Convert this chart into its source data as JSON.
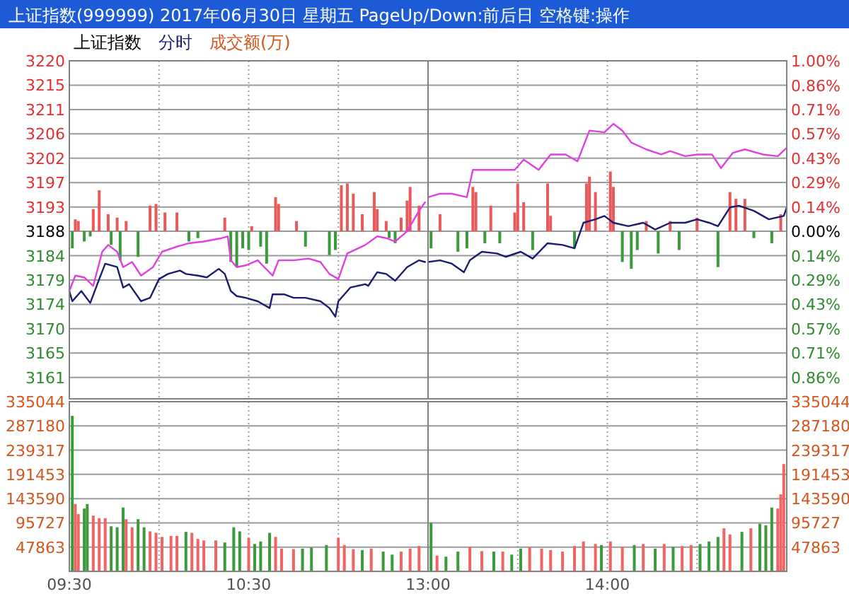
{
  "chart_data": [
    {
      "type": "line",
      "title": "上证指数(999999) 2017年06月30日 星期五 PageUp/Down:前后日 空格键:操作",
      "subtitle": "上证指数",
      "annotations": [
        "成交额(万)"
      ],
      "legend": "top left",
      "grid": true,
      "tick_labels": "y",
      "xlim": [
        "2017-06-30T09:30",
        "2017-06-30T11:30"
      ],
      "xticks": [
        {
          "value": "2017-06-30T09:30",
          "label": null
        },
        {
          "value": "2017-06-30T10:00",
          "label": null
        },
        {
          "value": "2017-06-30T10:30",
          "label": null
        },
        {
          "value": "2017-06-30T11:00",
          "label": null
        }
      ],
      "ylim": [
        3156.8,
        3219.95
      ],
      "yticks": [
        {
          "value": 3219.95,
          "label": "3220"
        },
        {
          "value": 3215.4,
          "label": "3215"
        },
        {
          "value": 3210.85,
          "label": "3211"
        },
        {
          "value": 3206.3,
          "label": "3206"
        },
        {
          "value": 3201.75,
          "label": "3202"
        },
        {
          "value": 3197.2,
          "label": "3197"
        },
        {
          "value": 3192.65,
          "label": "3193"
        },
        {
          "value": 3188.1,
          "label": "3188"
        },
        {
          "value": 3183.55,
          "label": "3184"
        },
        {
          "value": 3179.0,
          "label": "3179"
        },
        {
          "value": 3174.45,
          "label": "3174"
        },
        {
          "value": 3169.9,
          "label": "3170"
        },
        {
          "value": 3165.35,
          "label": "3165"
        },
        {
          "value": 3160.8,
          "label": "3161"
        }
      ],
      "y2lim": [
        -0.982,
        0.999
      ],
      "series": [
        {
          "type": "bar",
          "axis": "y2",
          "color": "#e85a5a",
          "x": [
            "2017-06-30T09:32",
            "2017-06-30T09:33",
            "2017-06-30T09:38",
            "2017-06-30T09:40",
            "2017-06-30T09:43",
            "2017-06-30T09:46",
            "2017-06-30T09:49",
            "2017-06-30T09:57",
            "2017-06-30T09:59",
            "2017-06-30T10:02",
            "2017-06-30T10:06",
            "2017-06-30T10:22",
            "2017-06-30T10:31",
            "2017-06-30T10:39",
            "2017-06-30T10:40",
            "2017-06-30T10:46",
            "2017-06-30T11:01",
            "2017-06-30T11:03",
            "2017-06-30T11:05",
            "2017-06-30T11:08",
            "2017-06-30T11:12",
            "2017-06-30T11:13",
            "2017-06-30T11:16",
            "2017-06-30T11:21",
            "2017-06-30T11:23",
            "2017-06-30T11:24",
            "2017-06-30T11:27"
          ],
          "values": [
            0.07,
            0.06,
            0.13,
            0.24,
            0.1,
            0.08,
            0.06,
            0.15,
            0.16,
            0.11,
            0.11,
            0.08,
            0.03,
            0.2,
            0.16,
            0.06,
            0.27,
            0.28,
            0.22,
            0.1,
            0.23,
            0.13,
            0.06,
            0.08,
            0.18,
            0.26,
            0.15
          ]
        },
        {
          "type": "bar",
          "axis": "y2",
          "color": "#3c9a3c",
          "x": [
            "2017-06-30T09:31",
            "2017-06-30T09:35",
            "2017-06-30T09:37",
            "2017-06-30T09:44",
            "2017-06-30T09:47",
            "2017-06-30T09:53",
            "2017-06-30T10:10",
            "2017-06-30T10:13",
            "2017-06-30T10:24",
            "2017-06-30T10:26",
            "2017-06-30T10:28",
            "2017-06-30T10:30",
            "2017-06-30T10:34",
            "2017-06-30T10:36",
            "2017-06-30T10:49",
            "2017-06-30T10:57",
            "2017-06-30T10:59",
            "2017-06-30T11:17",
            "2017-06-30T11:19"
          ],
          "values": [
            -0.1,
            -0.06,
            -0.03,
            -0.08,
            -0.17,
            -0.15,
            -0.06,
            -0.04,
            -0.18,
            -0.21,
            -0.1,
            -0.11,
            -0.09,
            -0.19,
            -0.09,
            -0.14,
            -0.11,
            -0.04,
            -0.07
          ]
        },
        {
          "axis": "y2",
          "color": "#e040e0",
          "x": [
            "2017-06-30T09:30",
            "2017-06-30T09:32",
            "2017-06-30T09:35",
            "2017-06-30T09:38",
            "2017-06-30T09:41",
            "2017-06-30T09:43",
            "2017-06-30T09:46",
            "2017-06-30T09:48",
            "2017-06-30T09:51",
            "2017-06-30T09:54",
            "2017-06-30T09:58",
            "2017-06-30T10:01",
            "2017-06-30T10:06",
            "2017-06-30T10:10",
            "2017-06-30T10:15",
            "2017-06-30T10:21",
            "2017-06-30T10:23",
            "2017-06-30T10:24",
            "2017-06-30T10:26",
            "2017-06-30T10:29",
            "2017-06-30T10:33",
            "2017-06-30T10:38",
            "2017-06-30T10:40",
            "2017-06-30T10:45",
            "2017-06-30T10:50",
            "2017-06-30T10:54",
            "2017-06-30T10:57",
            "2017-06-30T11:00",
            "2017-06-30T11:03",
            "2017-06-30T11:09",
            "2017-06-30T11:13",
            "2017-06-30T11:16",
            "2017-06-30T11:19",
            "2017-06-30T11:23",
            "2017-06-30T11:27",
            "2017-06-30T11:29"
          ],
          "values": [
            -0.35,
            -0.26,
            -0.27,
            -0.32,
            -0.12,
            -0.08,
            -0.12,
            -0.21,
            -0.18,
            -0.26,
            -0.21,
            -0.12,
            -0.09,
            -0.07,
            -0.06,
            -0.04,
            -0.03,
            -0.17,
            -0.21,
            -0.2,
            -0.17,
            -0.26,
            -0.17,
            -0.17,
            -0.16,
            -0.18,
            -0.25,
            -0.28,
            -0.13,
            -0.08,
            -0.03,
            -0.04,
            -0.06,
            0.0,
            0.12,
            0.17
          ]
        },
        {
          "axis": "y2",
          "name": "分时",
          "color": "#1c1c70",
          "x": [
            "2017-06-30T09:30",
            "2017-06-30T09:31",
            "2017-06-30T09:34",
            "2017-06-30T09:37",
            "2017-06-30T09:40",
            "2017-06-30T09:42",
            "2017-06-30T09:46",
            "2017-06-30T09:48",
            "2017-06-30T09:50",
            "2017-06-30T09:54",
            "2017-06-30T09:57",
            "2017-06-30T10:00",
            "2017-06-30T10:03",
            "2017-06-30T10:07",
            "2017-06-30T10:09",
            "2017-06-30T10:13",
            "2017-06-30T10:16",
            "2017-06-30T10:20",
            "2017-06-30T10:22",
            "2017-06-30T10:24",
            "2017-06-30T10:26",
            "2017-06-30T10:29",
            "2017-06-30T10:33",
            "2017-06-30T10:37",
            "2017-06-30T10:38",
            "2017-06-30T10:42",
            "2017-06-30T10:45",
            "2017-06-30T10:49",
            "2017-06-30T10:54",
            "2017-06-30T10:57",
            "2017-06-30T10:59",
            "2017-06-30T11:00",
            "2017-06-30T11:04",
            "2017-06-30T11:09",
            "2017-06-30T11:10",
            "2017-06-30T11:13",
            "2017-06-30T11:16",
            "2017-06-30T11:19",
            "2017-06-30T11:23",
            "2017-06-30T11:27",
            "2017-06-30T11:29"
          ],
          "values": [
            -0.35,
            -0.41,
            -0.35,
            -0.42,
            -0.28,
            -0.19,
            -0.21,
            -0.33,
            -0.31,
            -0.41,
            -0.39,
            -0.28,
            -0.25,
            -0.23,
            -0.25,
            -0.26,
            -0.27,
            -0.22,
            -0.25,
            -0.35,
            -0.38,
            -0.39,
            -0.41,
            -0.45,
            -0.37,
            -0.37,
            -0.39,
            -0.39,
            -0.41,
            -0.45,
            -0.5,
            -0.41,
            -0.33,
            -0.31,
            -0.32,
            -0.24,
            -0.25,
            -0.29,
            -0.21,
            -0.17,
            -0.18
          ]
        }
      ]
    },
    {
      "type": "line",
      "grid": true,
      "tick_labels": "y",
      "xlim": [
        "2017-06-30T13:00",
        "2017-06-30T15:00"
      ],
      "xticks": [
        {
          "value": "2017-06-30T13:00",
          "label": null
        },
        {
          "value": "2017-06-30T13:30",
          "label": null
        },
        {
          "value": "2017-06-30T14:00",
          "label": null
        },
        {
          "value": "2017-06-30T14:30",
          "label": null
        }
      ],
      "y2lim": [
        -0.982,
        0.999
      ],
      "y2ticks": [
        {
          "value": 0.999,
          "label": "1.00%"
        },
        {
          "value": 0.856,
          "label": "0.86%"
        },
        {
          "value": 0.714,
          "label": "0.71%"
        },
        {
          "value": 0.571,
          "label": "0.57%"
        },
        {
          "value": 0.428,
          "label": "0.43%"
        },
        {
          "value": 0.286,
          "label": "0.29%"
        },
        {
          "value": 0.143,
          "label": "0.14%"
        },
        {
          "value": 0,
          "label": "0.00%"
        },
        {
          "value": -0.143,
          "label": "0.14%"
        },
        {
          "value": -0.286,
          "label": "0.29%"
        },
        {
          "value": -0.428,
          "label": "0.43%"
        },
        {
          "value": -0.571,
          "label": "0.57%"
        },
        {
          "value": -0.714,
          "label": "0.71%"
        },
        {
          "value": -0.856,
          "label": "0.86%"
        }
      ],
      "series": [
        {
          "type": "bar",
          "axis": "y2",
          "color": "#e85a5a",
          "x": [
            "2017-06-30T13:04",
            "2017-06-30T13:15",
            "2017-06-30T13:16",
            "2017-06-30T13:21",
            "2017-06-30T13:29",
            "2017-06-30T13:30",
            "2017-06-30T13:32",
            "2017-06-30T13:40",
            "2017-06-30T13:41",
            "2017-06-30T13:53",
            "2017-06-30T13:54",
            "2017-06-30T13:56",
            "2017-06-30T14:01",
            "2017-06-30T14:02",
            "2017-06-30T14:13",
            "2017-06-30T14:21",
            "2017-06-30T14:30",
            "2017-06-30T14:41",
            "2017-06-30T14:43",
            "2017-06-30T14:46",
            "2017-06-30T14:58"
          ],
          "values": [
            0.1,
            0.26,
            0.23,
            0.15,
            0.11,
            0.28,
            0.17,
            0.28,
            0.09,
            0.28,
            0.32,
            0.23,
            0.35,
            0.26,
            0.06,
            0.06,
            0.08,
            0.23,
            0.19,
            0.19,
            0.1
          ]
        },
        {
          "type": "bar",
          "axis": "y2",
          "color": "#3c9a3c",
          "x": [
            "2017-06-30T13:01",
            "2017-06-30T13:10",
            "2017-06-30T13:13",
            "2017-06-30T13:19",
            "2017-06-30T13:24",
            "2017-06-30T13:35",
            "2017-06-30T13:49",
            "2017-06-30T14:05",
            "2017-06-30T14:08",
            "2017-06-30T14:10",
            "2017-06-30T14:17",
            "2017-06-30T14:24",
            "2017-06-30T14:37",
            "2017-06-30T14:49",
            "2017-06-30T14:55"
          ],
          "values": [
            -0.1,
            -0.12,
            -0.1,
            -0.07,
            -0.07,
            -0.11,
            -0.1,
            -0.18,
            -0.22,
            -0.11,
            -0.13,
            -0.11,
            -0.21,
            -0.04,
            -0.07
          ]
        },
        {
          "axis": "y2",
          "color": "#e040e0",
          "x": [
            "2017-06-30T13:00",
            "2017-06-30T13:04",
            "2017-06-30T13:08",
            "2017-06-30T13:13",
            "2017-06-30T13:15",
            "2017-06-30T13:19",
            "2017-06-30T13:24",
            "2017-06-30T13:29",
            "2017-06-30T13:32",
            "2017-06-30T13:37",
            "2017-06-30T13:41",
            "2017-06-30T13:46",
            "2017-06-30T13:50",
            "2017-06-30T13:54",
            "2017-06-30T13:59",
            "2017-06-30T14:02",
            "2017-06-30T14:05",
            "2017-06-30T14:08",
            "2017-06-30T14:13",
            "2017-06-30T14:18",
            "2017-06-30T14:21",
            "2017-06-30T14:26",
            "2017-06-30T14:30",
            "2017-06-30T14:35",
            "2017-06-30T14:38",
            "2017-06-30T14:42",
            "2017-06-30T14:46",
            "2017-06-30T14:52",
            "2017-06-30T14:57",
            "2017-06-30T15:00"
          ],
          "values": [
            0.2,
            0.22,
            0.22,
            0.2,
            0.36,
            0.36,
            0.36,
            0.36,
            0.42,
            0.36,
            0.45,
            0.45,
            0.41,
            0.59,
            0.58,
            0.63,
            0.59,
            0.52,
            0.48,
            0.45,
            0.47,
            0.44,
            0.45,
            0.45,
            0.37,
            0.46,
            0.48,
            0.45,
            0.44,
            0.49
          ]
        },
        {
          "axis": "y2",
          "color": "#1c1c70",
          "x": [
            "2017-06-30T13:00",
            "2017-06-30T13:04",
            "2017-06-30T13:08",
            "2017-06-30T13:12",
            "2017-06-30T13:14",
            "2017-06-30T13:18",
            "2017-06-30T13:23",
            "2017-06-30T13:26",
            "2017-06-30T13:31",
            "2017-06-30T13:35",
            "2017-06-30T13:40",
            "2017-06-30T13:45",
            "2017-06-30T13:49",
            "2017-06-30T13:52",
            "2017-06-30T13:56",
            "2017-06-30T13:59",
            "2017-06-30T14:02",
            "2017-06-30T14:07",
            "2017-06-30T14:12",
            "2017-06-30T14:16",
            "2017-06-30T14:21",
            "2017-06-30T14:26",
            "2017-06-30T14:30",
            "2017-06-30T14:34",
            "2017-06-30T14:37",
            "2017-06-30T14:41",
            "2017-06-30T14:44",
            "2017-06-30T14:49",
            "2017-06-30T14:54",
            "2017-06-30T14:59",
            "2017-06-30T15:00"
          ],
          "values": [
            -0.18,
            -0.17,
            -0.19,
            -0.24,
            -0.17,
            -0.12,
            -0.13,
            -0.15,
            -0.12,
            -0.16,
            -0.07,
            -0.08,
            -0.1,
            0.05,
            0.07,
            0.09,
            0.05,
            0.03,
            0.05,
            0.01,
            0.05,
            0.05,
            0.07,
            0.05,
            0.03,
            0.14,
            0.15,
            0.12,
            0.07,
            0.09,
            0.14
          ]
        }
      ]
    },
    {
      "type": "bar",
      "grid": true,
      "xlim": [
        "2017-06-30T09:30",
        "2017-06-30T11:30"
      ],
      "xticks": [
        {
          "value": "2017-06-30T09:30",
          "label": "09:30"
        },
        {
          "value": "2017-06-30T10:00",
          "label": null
        },
        {
          "value": "2017-06-30T10:30",
          "label": "10:30"
        },
        {
          "value": "2017-06-30T11:00",
          "label": null
        }
      ],
      "ylim": [
        0,
        335044
      ],
      "yticks": [
        47863,
        95727,
        143590,
        191453,
        239317,
        287180,
        335044
      ],
      "x": [
        "2017-06-30T09:31",
        "2017-06-30T09:32",
        "2017-06-30T09:33",
        "2017-06-30T09:35",
        "2017-06-30T09:36",
        "2017-06-30T09:38",
        "2017-06-30T09:40",
        "2017-06-30T09:42",
        "2017-06-30T09:44",
        "2017-06-30T09:46",
        "2017-06-30T09:48",
        "2017-06-30T09:49",
        "2017-06-30T09:51",
        "2017-06-30T09:53",
        "2017-06-30T09:55",
        "2017-06-30T09:57",
        "2017-06-30T09:59",
        "2017-06-30T10:01",
        "2017-06-30T10:04",
        "2017-06-30T10:06",
        "2017-06-30T10:09",
        "2017-06-30T10:11",
        "2017-06-30T10:13",
        "2017-06-30T10:15",
        "2017-06-30T10:19",
        "2017-06-30T10:22",
        "2017-06-30T10:25",
        "2017-06-30T10:27",
        "2017-06-30T10:30",
        "2017-06-30T10:32",
        "2017-06-30T10:34",
        "2017-06-30T10:37",
        "2017-06-30T10:39",
        "2017-06-30T10:41",
        "2017-06-30T10:45",
        "2017-06-30T10:48",
        "2017-06-30T10:51",
        "2017-06-30T10:56",
        "2017-06-30T11:00",
        "2017-06-30T11:02",
        "2017-06-30T11:05",
        "2017-06-30T11:08",
        "2017-06-30T11:11",
        "2017-06-30T11:15",
        "2017-06-30T11:18",
        "2017-06-30T11:21",
        "2017-06-30T11:24",
        "2017-06-30T11:27"
      ],
      "values": [
        307000,
        133000,
        113000,
        124000,
        133000,
        110000,
        105000,
        105000,
        89000,
        87000,
        126000,
        103000,
        87000,
        103000,
        87000,
        79000,
        76000,
        68000,
        70000,
        70000,
        78000,
        76000,
        64000,
        61000,
        61000,
        57000,
        87000,
        79000,
        66000,
        54000,
        59000,
        76000,
        68000,
        45000,
        44000,
        45000,
        47000,
        52000,
        66000,
        52000,
        44000,
        42000,
        45000,
        39000,
        33000,
        39000,
        45000,
        50000
      ],
      "colors": [
        "#3c9a3c",
        "#f06464",
        "#f06464",
        "#3c9a3c",
        "#3c9a3c",
        "#f06464",
        "#f06464",
        "#f06464",
        "#3c9a3c",
        "#3c9a3c",
        "#3c9a3c",
        "#f06464",
        "#f06464",
        "#3c9a3c",
        "#3c9a3c",
        "#f06464",
        "#f06464",
        "#f06464",
        "#f06464",
        "#f06464",
        "#3c9a3c",
        "#f06464",
        "#f06464",
        "#f06464",
        "#f06464",
        "#3c9a3c",
        "#3c9a3c",
        "#3c9a3c",
        "#f06464",
        "#3c9a3c",
        "#3c9a3c",
        "#3c9a3c",
        "#f06464",
        "#f06464",
        "#f06464",
        "#3c9a3c",
        "#3c9a3c",
        "#3c9a3c",
        "#f06464",
        "#f06464",
        "#f06464",
        "#3c9a3c",
        "#f06464",
        "#3c9a3c",
        "#3c9a3c",
        "#f06464",
        "#f06464",
        "#f06464"
      ]
    },
    {
      "type": "bar",
      "grid": true,
      "xlim": [
        "2017-06-30T13:00",
        "2017-06-30T15:00"
      ],
      "xticks": [
        {
          "value": "2017-06-30T13:00",
          "label": "13:00"
        },
        {
          "value": "2017-06-30T13:30",
          "label": null
        },
        {
          "value": "2017-06-30T14:00",
          "label": "14:00"
        },
        {
          "value": "2017-06-30T14:30",
          "label": null
        }
      ],
      "y2lim": [
        0,
        335044
      ],
      "y2ticks": [
        47863,
        95727,
        143590,
        191453,
        239317,
        287180,
        335044
      ],
      "x": [
        "2017-06-30T13:01",
        "2017-06-30T13:03",
        "2017-06-30T13:06",
        "2017-06-30T13:10",
        "2017-06-30T13:14",
        "2017-06-30T13:18",
        "2017-06-30T13:22",
        "2017-06-30T13:25",
        "2017-06-30T13:28",
        "2017-06-30T13:31",
        "2017-06-30T13:34",
        "2017-06-30T13:38",
        "2017-06-30T13:41",
        "2017-06-30T13:45",
        "2017-06-30T13:49",
        "2017-06-30T13:52",
        "2017-06-30T13:56",
        "2017-06-30T13:58",
        "2017-06-30T14:01",
        "2017-06-30T14:05",
        "2017-06-30T14:09",
        "2017-06-30T14:12",
        "2017-06-30T14:16",
        "2017-06-30T14:19",
        "2017-06-30T14:22",
        "2017-06-30T14:25",
        "2017-06-30T14:28",
        "2017-06-30T14:31",
        "2017-06-30T14:34",
        "2017-06-30T14:37",
        "2017-06-30T14:39",
        "2017-06-30T14:41",
        "2017-06-30T14:45",
        "2017-06-30T14:48",
        "2017-06-30T14:51",
        "2017-06-30T14:53",
        "2017-06-30T14:55",
        "2017-06-30T14:57",
        "2017-06-30T14:58",
        "2017-06-30T14:59"
      ],
      "series": [
        {
          "axis": "y2",
          "values": [
            96000,
            31000,
            29000,
            39000,
            48000,
            40000,
            39000,
            39000,
            33000,
            45000,
            48000,
            45000,
            42000,
            39000,
            50000,
            59000,
            54000,
            52000,
            59000,
            48000,
            52000,
            54000,
            45000,
            54000,
            48000,
            50000,
            52000,
            54000,
            59000,
            68000,
            85000,
            73000,
            78000,
            85000,
            94000,
            91000,
            126000,
            124000,
            152000,
            212000
          ],
          "colors": [
            "#3c9a3c",
            "#f06464",
            "#3c9a3c",
            "#3c9a3c",
            "#f06464",
            "#f06464",
            "#3c9a3c",
            "#f06464",
            "#3c9a3c",
            "#3c9a3c",
            "#f06464",
            "#f06464",
            "#f06464",
            "#f06464",
            "#f06464",
            "#f06464",
            "#f06464",
            "#3c9a3c",
            "#f06464",
            "#f06464",
            "#3c9a3c",
            "#f06464",
            "#3c9a3c",
            "#f06464",
            "#3c9a3c",
            "#f06464",
            "#f06464",
            "#3c9a3c",
            "#3c9a3c",
            "#3c9a3c",
            "#f06464",
            "#f06464",
            "#3c9a3c",
            "#f06464",
            "#3c9a3c",
            "#3c9a3c",
            "#3c9a3c",
            "#f06464",
            "#f06464",
            "#f06464"
          ]
        }
      ]
    }
  ]
}
